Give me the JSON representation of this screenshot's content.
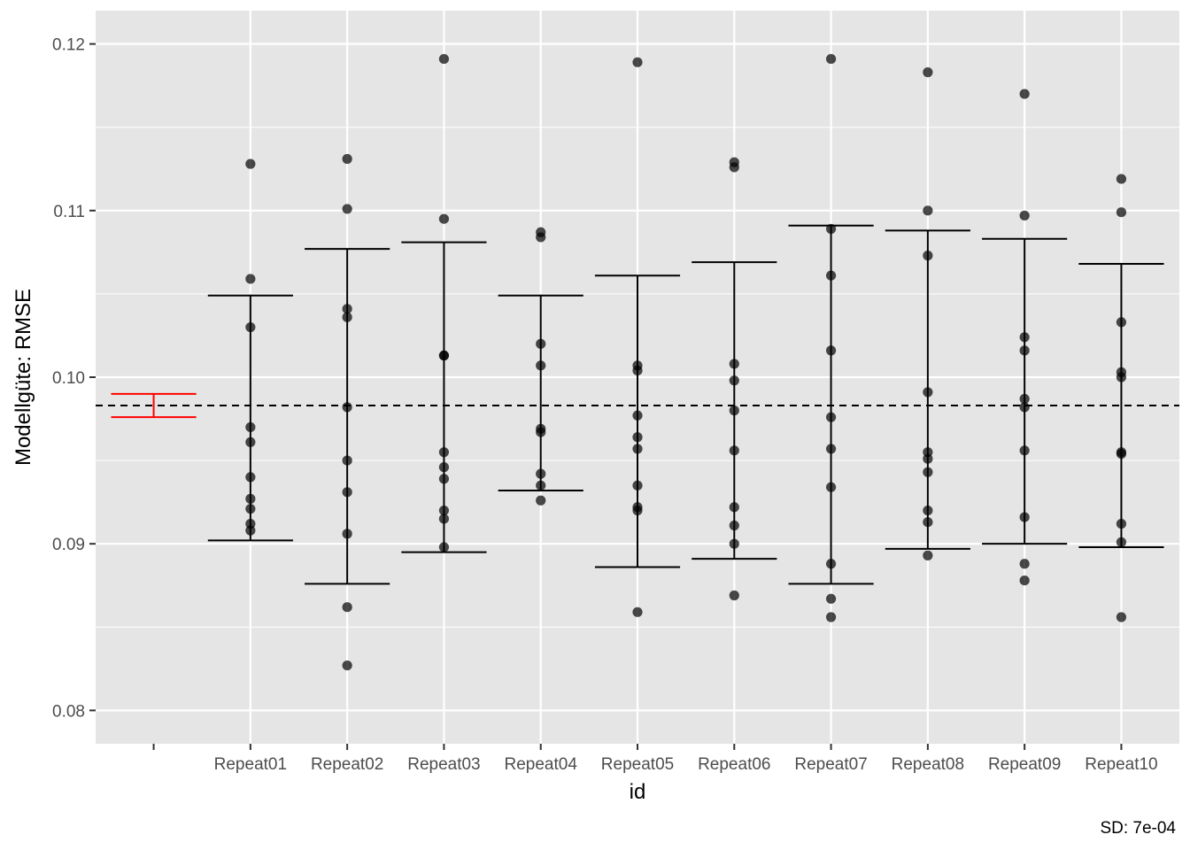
{
  "chart_data": {
    "type": "scatter",
    "title": "",
    "xlabel": "id",
    "ylabel": "Modellgüte: RMSE",
    "caption": "SD: 7e-04",
    "categories": [
      "",
      "Repeat01",
      "Repeat02",
      "Repeat03",
      "Repeat04",
      "Repeat05",
      "Repeat06",
      "Repeat07",
      "Repeat08",
      "Repeat09",
      "Repeat10"
    ],
    "ylim": [
      0.078,
      0.122
    ],
    "yticks": [
      0.08,
      0.09,
      0.1,
      0.11,
      0.12
    ],
    "ytick_labels": [
      "0.08",
      "0.09",
      "0.10",
      "0.11",
      "0.12"
    ],
    "grid": true,
    "reference_line": {
      "y": 0.0983,
      "style": "dashed",
      "color": "#000000"
    },
    "overall_errorbar": {
      "category": "",
      "ymin": 0.0976,
      "ymax": 0.099,
      "color": "#ff0000"
    },
    "errorbars": [
      {
        "category": "Repeat01",
        "ymin": 0.0902,
        "ymax": 0.1049
      },
      {
        "category": "Repeat02",
        "ymin": 0.0876,
        "ymax": 0.1077
      },
      {
        "category": "Repeat03",
        "ymin": 0.0895,
        "ymax": 0.1081
      },
      {
        "category": "Repeat04",
        "ymin": 0.0932,
        "ymax": 0.1049
      },
      {
        "category": "Repeat05",
        "ymin": 0.0886,
        "ymax": 0.1061
      },
      {
        "category": "Repeat06",
        "ymin": 0.0891,
        "ymax": 0.1069
      },
      {
        "category": "Repeat07",
        "ymin": 0.0876,
        "ymax": 0.1091
      },
      {
        "category": "Repeat08",
        "ymin": 0.0897,
        "ymax": 0.1088
      },
      {
        "category": "Repeat09",
        "ymin": 0.09,
        "ymax": 0.1083
      },
      {
        "category": "Repeat10",
        "ymin": 0.0898,
        "ymax": 0.1068
      }
    ],
    "points": [
      {
        "category": "Repeat01",
        "values": [
          0.1128,
          0.1059,
          0.103,
          0.097,
          0.0961,
          0.094,
          0.0927,
          0.0921,
          0.0912,
          0.0908
        ]
      },
      {
        "category": "Repeat02",
        "values": [
          0.1131,
          0.1101,
          0.1041,
          0.1036,
          0.0982,
          0.095,
          0.0931,
          0.0906,
          0.0862,
          0.0827
        ]
      },
      {
        "category": "Repeat03",
        "values": [
          0.1191,
          0.1095,
          0.1013,
          0.1013,
          0.0955,
          0.0946,
          0.0939,
          0.092,
          0.0915,
          0.0898
        ]
      },
      {
        "category": "Repeat04",
        "values": [
          0.1087,
          0.1084,
          0.102,
          0.1007,
          0.0969,
          0.0967,
          0.0942,
          0.0935,
          0.0926
        ]
      },
      {
        "category": "Repeat05",
        "values": [
          0.1189,
          0.1007,
          0.1004,
          0.0977,
          0.0964,
          0.0957,
          0.0935,
          0.0922,
          0.092,
          0.0859
        ]
      },
      {
        "category": "Repeat06",
        "values": [
          0.1129,
          0.1126,
          0.1008,
          0.0998,
          0.098,
          0.0956,
          0.0922,
          0.0911,
          0.09,
          0.0869
        ]
      },
      {
        "category": "Repeat07",
        "values": [
          0.1191,
          0.1089,
          0.1061,
          0.1016,
          0.0976,
          0.0957,
          0.0934,
          0.0888,
          0.0867,
          0.0856
        ]
      },
      {
        "category": "Repeat08",
        "values": [
          0.1183,
          0.11,
          0.1073,
          0.0991,
          0.0955,
          0.0951,
          0.0943,
          0.092,
          0.0913,
          0.0893
        ]
      },
      {
        "category": "Repeat09",
        "values": [
          0.117,
          0.1097,
          0.1024,
          0.1016,
          0.0987,
          0.0982,
          0.0956,
          0.0916,
          0.0888,
          0.0878
        ]
      },
      {
        "category": "Repeat10",
        "values": [
          0.1119,
          0.1099,
          0.1033,
          0.1003,
          0.1,
          0.0955,
          0.0954,
          0.0912,
          0.0901,
          0.0856
        ]
      }
    ]
  },
  "colors": {
    "panel_background": "#e5e5e5",
    "grid": "#ffffff",
    "point": "#000000",
    "errorbar": "#000000",
    "overall_errorbar": "#ff0000"
  }
}
